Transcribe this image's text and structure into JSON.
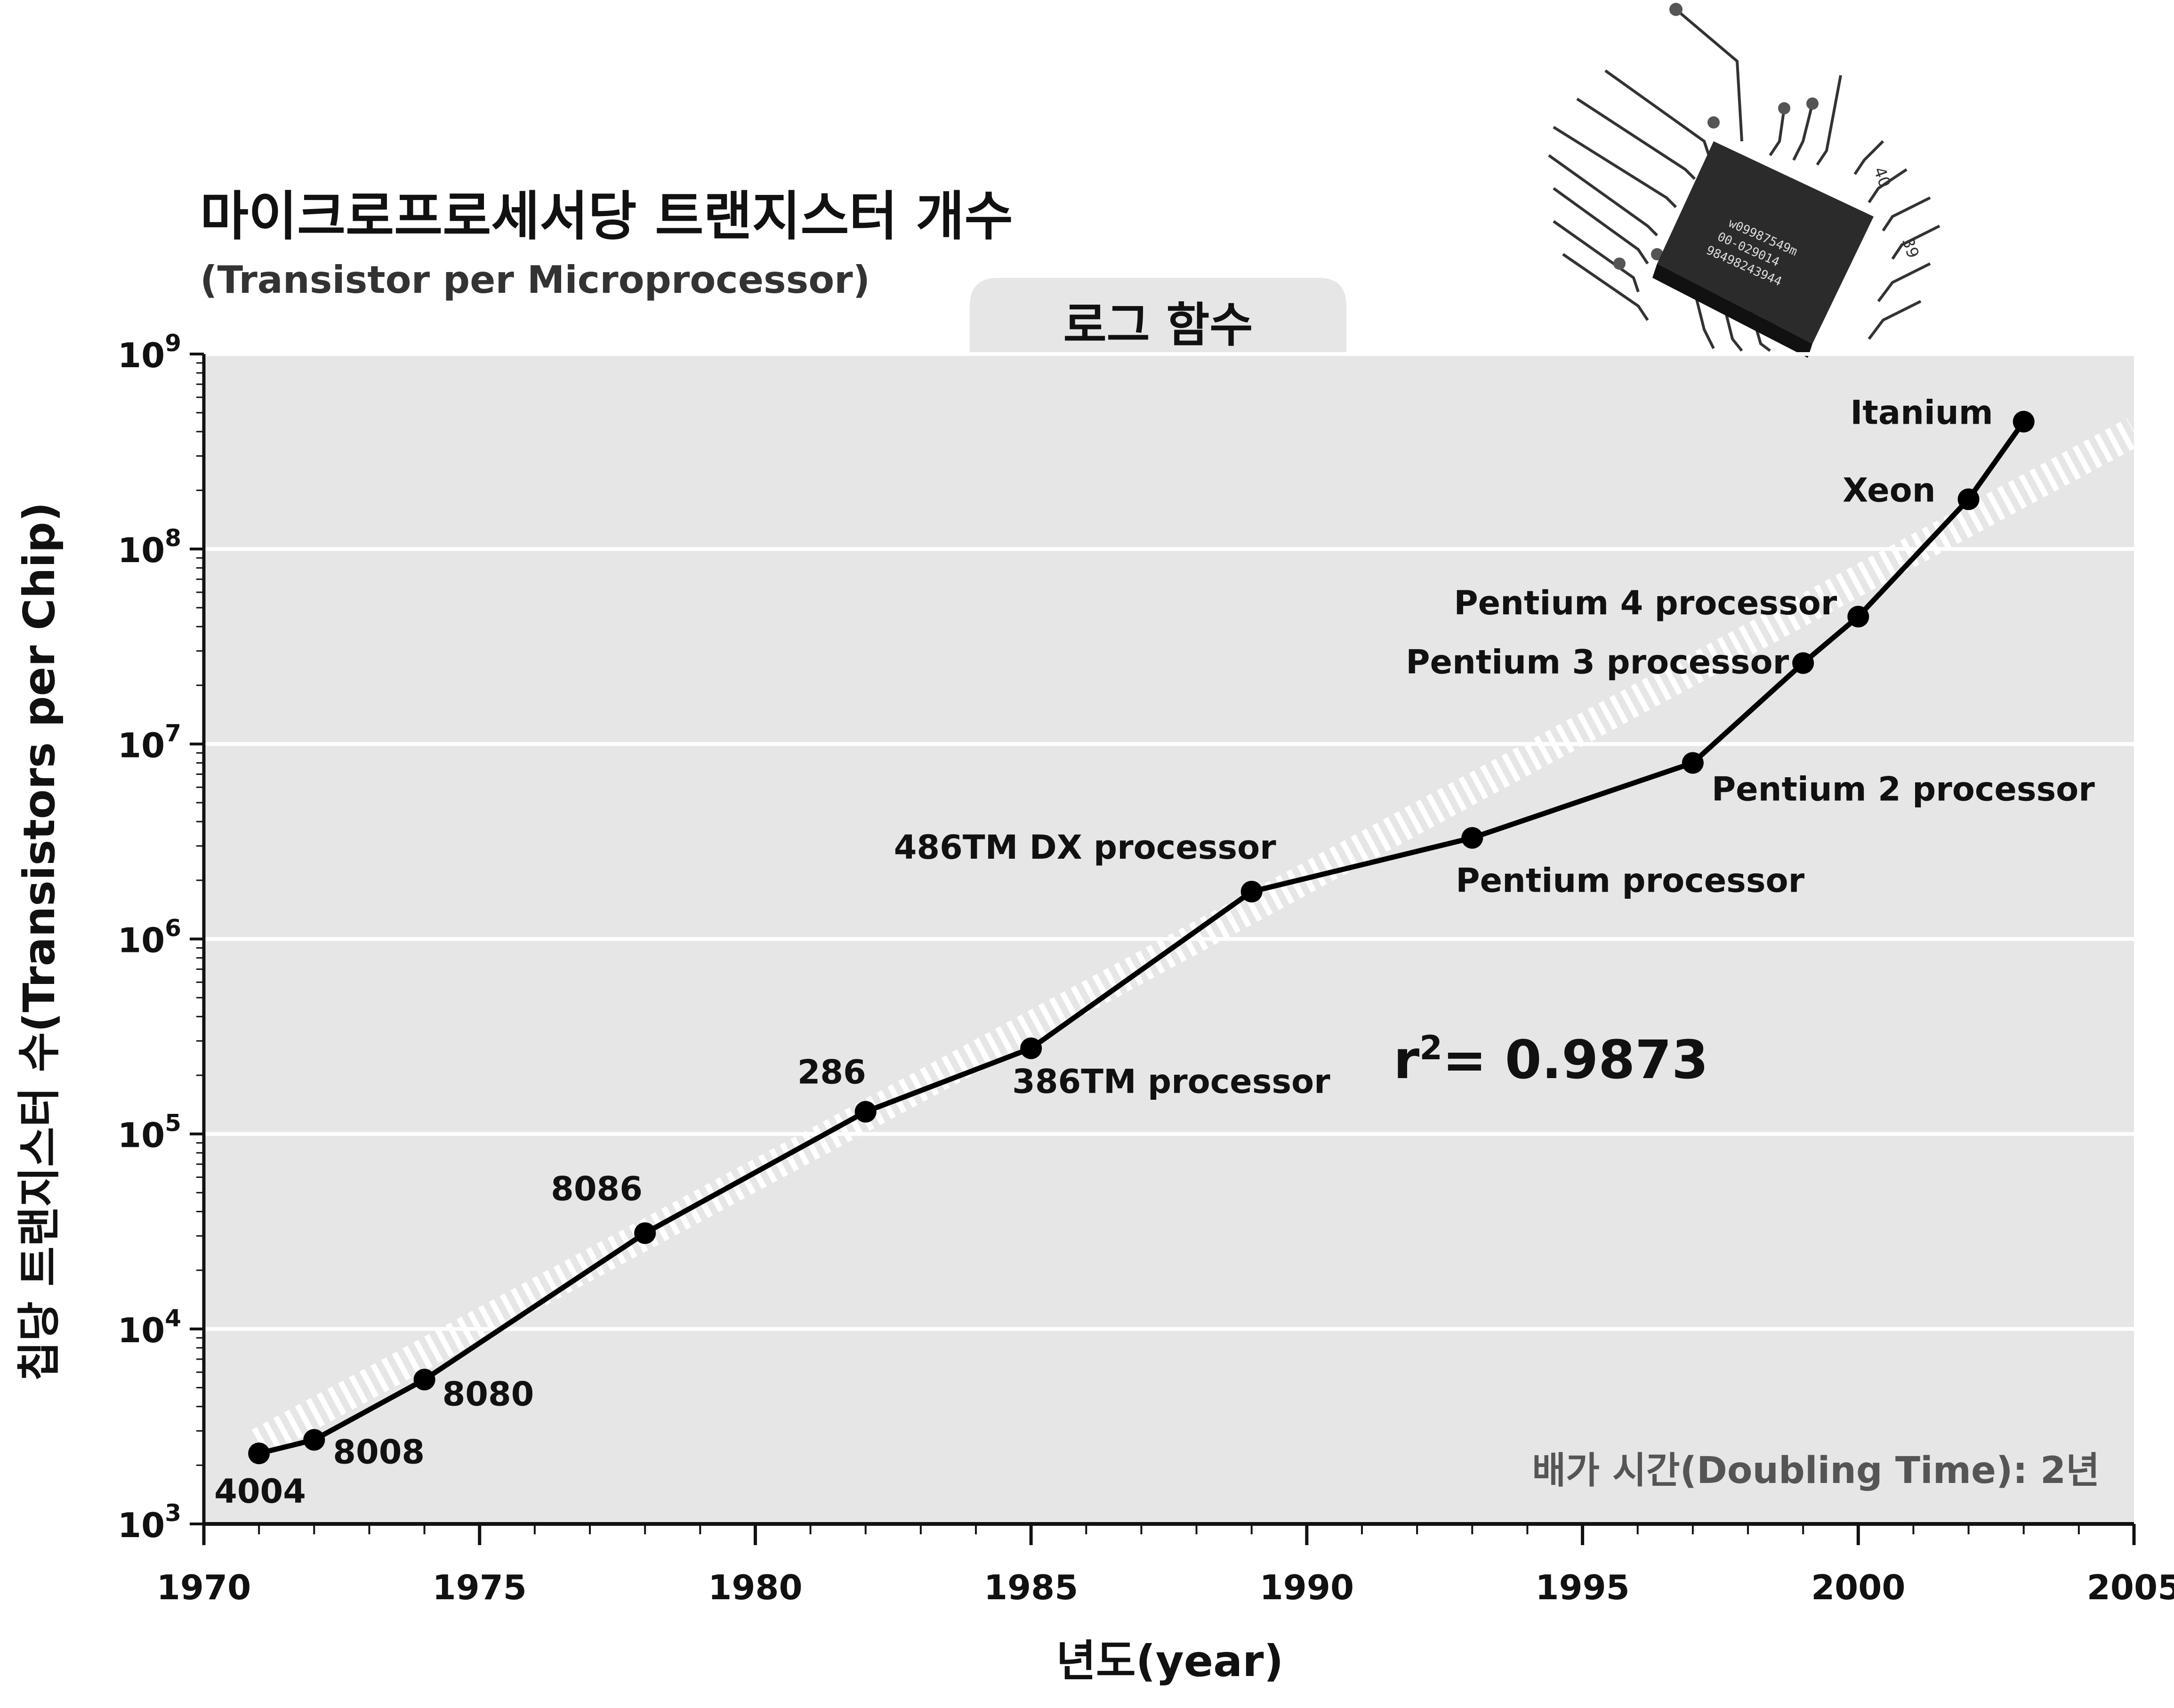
{
  "chart_data": {
    "type": "line",
    "title": "마이크로프로세서당 트랜지스터 개수",
    "subtitle": "(Transistor per Microprocessor)",
    "tab_label": "로그 함수",
    "xlabel": "년도(year)",
    "ylabel": "칩당 트랜지스터 수(Transistors per Chip)",
    "y_scale": "log",
    "xlim": [
      1970,
      2005
    ],
    "ylim": [
      1000,
      1000000000
    ],
    "x_ticks": [
      "1970",
      "1975",
      "1980",
      "1985",
      "1990",
      "1995",
      "2000",
      "2005"
    ],
    "y_tick_base": "10",
    "y_tick_exponents": [
      "3",
      "4",
      "5",
      "6",
      "7",
      "8",
      "9"
    ],
    "grid": true,
    "r_squared_prefix": "r",
    "r_squared_power": "2",
    "r_squared_value": "= 0.9873",
    "doubling_time": "배가 시간(Doubling Time): 2년",
    "trend_line": {
      "x": [
        1971,
        2005
      ],
      "y": [
        2600,
        400000000
      ]
    },
    "points": [
      {
        "x": 1971,
        "y": 2300,
        "label": "4004"
      },
      {
        "x": 1972,
        "y": 2700,
        "label": "8008"
      },
      {
        "x": 1974,
        "y": 5500,
        "label": "8080"
      },
      {
        "x": 1978,
        "y": 31000,
        "label": "8086"
      },
      {
        "x": 1982,
        "y": 130000,
        "label": "286"
      },
      {
        "x": 1985,
        "y": 275000,
        "label": "386TM processor"
      },
      {
        "x": 1989,
        "y": 1750000,
        "label": "486TM DX processor"
      },
      {
        "x": 1993,
        "y": 3300000,
        "label": "Pentium processor"
      },
      {
        "x": 1997,
        "y": 8000000,
        "label": "Pentium 2 processor"
      },
      {
        "x": 1999,
        "y": 26000000,
        "label": "Pentium 3 processor"
      },
      {
        "x": 2000,
        "y": 45000000,
        "label": "Pentium 4 processor"
      },
      {
        "x": 2002,
        "y": 180000000,
        "label": "Xeon"
      },
      {
        "x": 2003,
        "y": 450000000,
        "label": "Itanium"
      }
    ]
  },
  "chip_image": {
    "icon": "microchip-icon",
    "lines": [
      "w09987549m",
      "00-029014",
      "98498243944"
    ],
    "pin_labels": [
      "40",
      "39"
    ]
  },
  "colors": {
    "plot_background": "#e6e6e6",
    "grid": "#ffffff",
    "series": "#000000",
    "trend": "#ffffff"
  }
}
